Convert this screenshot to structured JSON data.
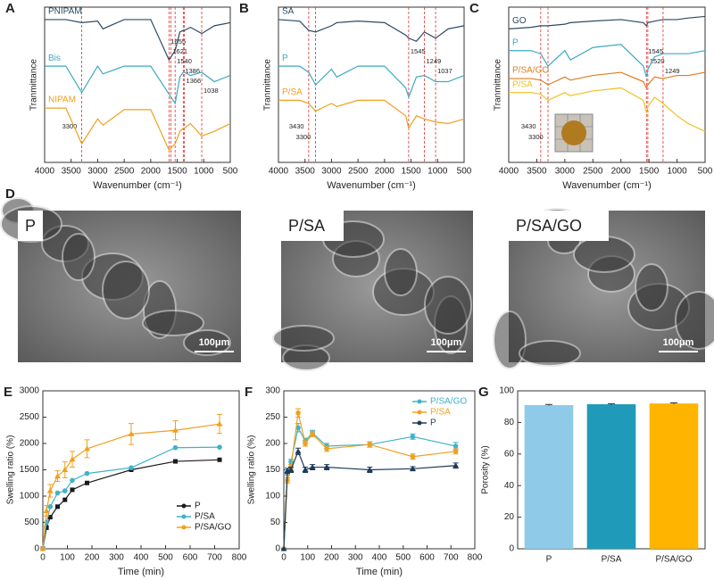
{
  "chart_data": [
    {
      "type": "line",
      "label": "A",
      "xlabel": "Wavenumber (cm⁻¹)",
      "ylabel": "Tranmittance",
      "xlim": [
        4000,
        500
      ],
      "ylim": [
        0,
        100
      ],
      "xticks": [
        4000,
        3500,
        3000,
        2500,
        2000,
        1500,
        1000,
        500
      ],
      "x": [
        4000,
        3600,
        3300,
        3000,
        2900,
        2500,
        2000,
        1655,
        1540,
        1450,
        1386,
        1366,
        1250,
        1038,
        800,
        500
      ],
      "reference_lines": [
        3300,
        1655,
        1621,
        1540,
        1386,
        1366,
        1038
      ],
      "series": [
        {
          "name": "PNIPAM",
          "color": "#2d4a63",
          "values": [
            92,
            92,
            90,
            91,
            86,
            92,
            92,
            66,
            72,
            84,
            85,
            85,
            87,
            83,
            88,
            90
          ]
        },
        {
          "name": "Bis",
          "color": "#3fa9c2",
          "values": [
            62,
            62,
            45,
            62,
            57,
            62,
            62,
            44,
            38,
            55,
            58,
            58,
            56,
            58,
            52,
            56
          ]
        },
        {
          "name": "NIPAM",
          "color": "#f0a020",
          "values": [
            35,
            35,
            12,
            28,
            24,
            34,
            34,
            8,
            12,
            20,
            22,
            22,
            25,
            17,
            20,
            25
          ]
        }
      ]
    },
    {
      "type": "line",
      "label": "B",
      "xlabel": "Wavenumber (cm⁻¹)",
      "ylabel": "Tranmittance",
      "xlim": [
        4000,
        500
      ],
      "ylim": [
        0,
        100
      ],
      "xticks": [
        4000,
        3500,
        3000,
        2500,
        2000,
        1500,
        1000,
        500
      ],
      "x": [
        4000,
        3600,
        3430,
        3300,
        3000,
        2900,
        2500,
        2000,
        1600,
        1545,
        1400,
        1249,
        1037,
        800,
        500
      ],
      "reference_lines": [
        3430,
        3300,
        1545,
        1249,
        1037
      ],
      "series": [
        {
          "name": "SA",
          "color": "#2d4a63",
          "values": [
            92,
            91,
            85,
            84,
            88,
            90,
            91,
            90,
            82,
            80,
            78,
            84,
            80,
            86,
            88
          ]
        },
        {
          "name": "P",
          "color": "#3fa9c2",
          "values": [
            62,
            62,
            58,
            50,
            60,
            55,
            62,
            62,
            48,
            42,
            55,
            56,
            52,
            52,
            56
          ]
        },
        {
          "name": "P/SA",
          "color": "#f0a020",
          "values": [
            40,
            40,
            38,
            33,
            38,
            36,
            40,
            40,
            30,
            22,
            30,
            28,
            26,
            25,
            28
          ]
        }
      ]
    },
    {
      "type": "line",
      "label": "C",
      "xlabel": "Wavenumber (cm⁻¹)",
      "ylabel": "Tranmittance",
      "xlim": [
        4000,
        500
      ],
      "ylim": [
        0,
        100
      ],
      "xticks": [
        4000,
        3500,
        3000,
        2500,
        2000,
        1500,
        1000,
        500
      ],
      "x": [
        4000,
        3600,
        3430,
        3300,
        3000,
        2900,
        2500,
        2000,
        1600,
        1545,
        1520,
        1400,
        1249,
        1000,
        800,
        500
      ],
      "reference_lines": [
        3430,
        3300,
        1545,
        1520,
        1249
      ],
      "series": [
        {
          "name": "GO",
          "color": "#2d4a63",
          "values": [
            86,
            87,
            88,
            88,
            89,
            90,
            91,
            92,
            90,
            88,
            90,
            91,
            92,
            92,
            93,
            94
          ]
        },
        {
          "name": "P",
          "color": "#3fa9c2",
          "values": [
            72,
            72,
            70,
            62,
            72,
            66,
            74,
            76,
            62,
            55,
            60,
            68,
            70,
            70,
            70,
            72
          ]
        },
        {
          "name": "P/SA/GO",
          "color": "#e07b20",
          "values": [
            54,
            54,
            53,
            50,
            55,
            53,
            56,
            58,
            52,
            48,
            50,
            55,
            54,
            56,
            56,
            58
          ]
        },
        {
          "name": "P/SA",
          "color": "#f0c020",
          "values": [
            45,
            45,
            44,
            40,
            45,
            43,
            46,
            48,
            40,
            32,
            36,
            42,
            38,
            30,
            25,
            20
          ]
        }
      ]
    },
    {
      "type": "line",
      "label": "E",
      "xlabel": "Time (min)",
      "ylabel": "Swelling ratio (%)",
      "xlim": [
        0,
        800
      ],
      "ylim": [
        0,
        3000
      ],
      "xticks": [
        0,
        100,
        200,
        300,
        400,
        500,
        600,
        700,
        800
      ],
      "yticks": [
        0,
        500,
        1000,
        1500,
        2000,
        2500,
        3000
      ],
      "legend": "lower right",
      "x": [
        0,
        15,
        30,
        60,
        90,
        120,
        180,
        360,
        540,
        720
      ],
      "series": [
        {
          "name": "P",
          "color": "#1a1a1a",
          "marker": "square",
          "values": [
            0,
            400,
            600,
            800,
            930,
            1120,
            1250,
            1500,
            1660,
            1690
          ]
        },
        {
          "name": "P/SA",
          "color": "#3fb3c9",
          "marker": "circle",
          "values": [
            0,
            500,
            800,
            1060,
            1100,
            1300,
            1430,
            1540,
            1920,
            1930
          ]
        },
        {
          "name": "P/SA/GO",
          "color": "#f0a020",
          "marker": "triangle",
          "values": [
            0,
            720,
            1100,
            1380,
            1500,
            1700,
            1900,
            2180,
            2250,
            2370
          ],
          "errors": [
            0,
            100,
            120,
            100,
            150,
            150,
            170,
            200,
            180,
            180
          ]
        }
      ]
    },
    {
      "type": "line",
      "label": "F",
      "xlabel": "Time (min)",
      "ylabel": "Swelling ratio (%)",
      "xlim": [
        0,
        800
      ],
      "ylim": [
        0,
        300
      ],
      "xticks": [
        0,
        100,
        200,
        300,
        400,
        500,
        600,
        700,
        800
      ],
      "yticks": [
        0,
        50,
        100,
        150,
        200,
        250,
        300
      ],
      "legend": "upper right",
      "x": [
        0,
        15,
        30,
        60,
        90,
        120,
        180,
        360,
        540,
        720
      ],
      "series": [
        {
          "name": "P/SA/GO",
          "color": "#3fb3c9",
          "marker": "circle",
          "values": [
            0,
            145,
            165,
            230,
            205,
            220,
            195,
            198,
            213,
            195
          ],
          "errors": [
            0,
            5,
            5,
            8,
            5,
            5,
            5,
            5,
            5,
            7
          ]
        },
        {
          "name": "P/SA",
          "color": "#f0a020",
          "marker": "circle",
          "values": [
            0,
            130,
            155,
            258,
            200,
            218,
            190,
            198,
            175,
            185
          ],
          "errors": [
            0,
            5,
            5,
            8,
            5,
            5,
            5,
            5,
            5,
            5
          ]
        },
        {
          "name": "P",
          "color": "#1f3a5a",
          "marker": "triangle",
          "values": [
            0,
            148,
            150,
            185,
            150,
            155,
            155,
            150,
            152,
            158
          ],
          "errors": [
            0,
            5,
            5,
            6,
            5,
            5,
            5,
            5,
            4,
            5
          ]
        }
      ]
    },
    {
      "type": "bar",
      "label": "G",
      "ylabel": "Porosity (%)",
      "ylim": [
        0,
        100
      ],
      "yticks": [
        0,
        20,
        40,
        60,
        80,
        100
      ],
      "categories": [
        "P",
        "P/SA",
        "P/SA/GO"
      ],
      "values": [
        91,
        91.5,
        92
      ],
      "errors": [
        0.4,
        0.4,
        0.4
      ],
      "colors": [
        "#8fcbe8",
        "#1f9ab8",
        "#ffb400"
      ]
    }
  ],
  "images": {
    "label": "D",
    "items": [
      {
        "name": "P",
        "scale": "100μm"
      },
      {
        "name": "P/SA",
        "scale": "100μm"
      },
      {
        "name": "P/SA/GO",
        "scale": "100μm"
      }
    ]
  }
}
